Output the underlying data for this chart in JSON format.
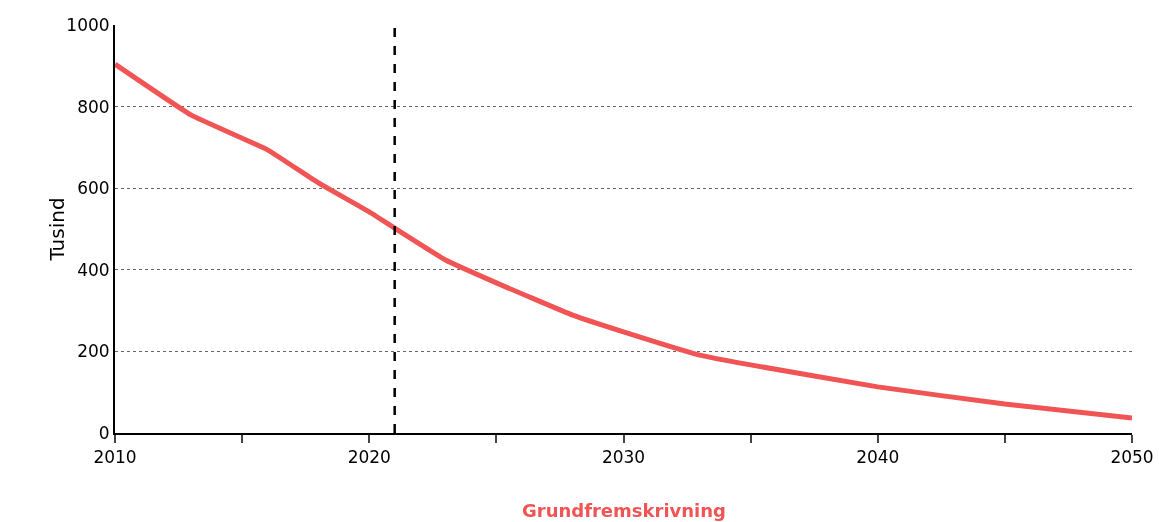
{
  "chart_data": {
    "type": "line",
    "ylabel": "Tusind",
    "x": [
      2010,
      2013,
      2016,
      2018,
      2020,
      2021,
      2023,
      2025,
      2028,
      2030,
      2033,
      2035,
      2040,
      2045,
      2050
    ],
    "series": [
      {
        "name": "Grundfremskrivning",
        "color": "#f05454",
        "values": [
          904,
          779,
          694,
          613,
          542,
          502,
          424,
          368,
          289,
          248,
          191,
          167,
          113,
          71,
          37
        ]
      }
    ],
    "xlim": [
      2010,
      2050
    ],
    "xticks": [
      2010,
      {
        "value": 2015,
        "label": null
      },
      2020,
      {
        "value": 2025,
        "label": null
      },
      2030,
      {
        "value": 2035,
        "label": null
      },
      2040,
      {
        "value": 2045,
        "label": null
      },
      2050
    ],
    "ylim": [
      0,
      1000
    ],
    "yticks": [
      0,
      200,
      400,
      600,
      800,
      1000
    ],
    "grid": "y",
    "legend": false,
    "marker": "none",
    "line_style": "solid",
    "ref_lines": [
      {
        "axis": "x",
        "value": 2021,
        "color": "#000000",
        "line_style": "dashed"
      }
    ]
  }
}
